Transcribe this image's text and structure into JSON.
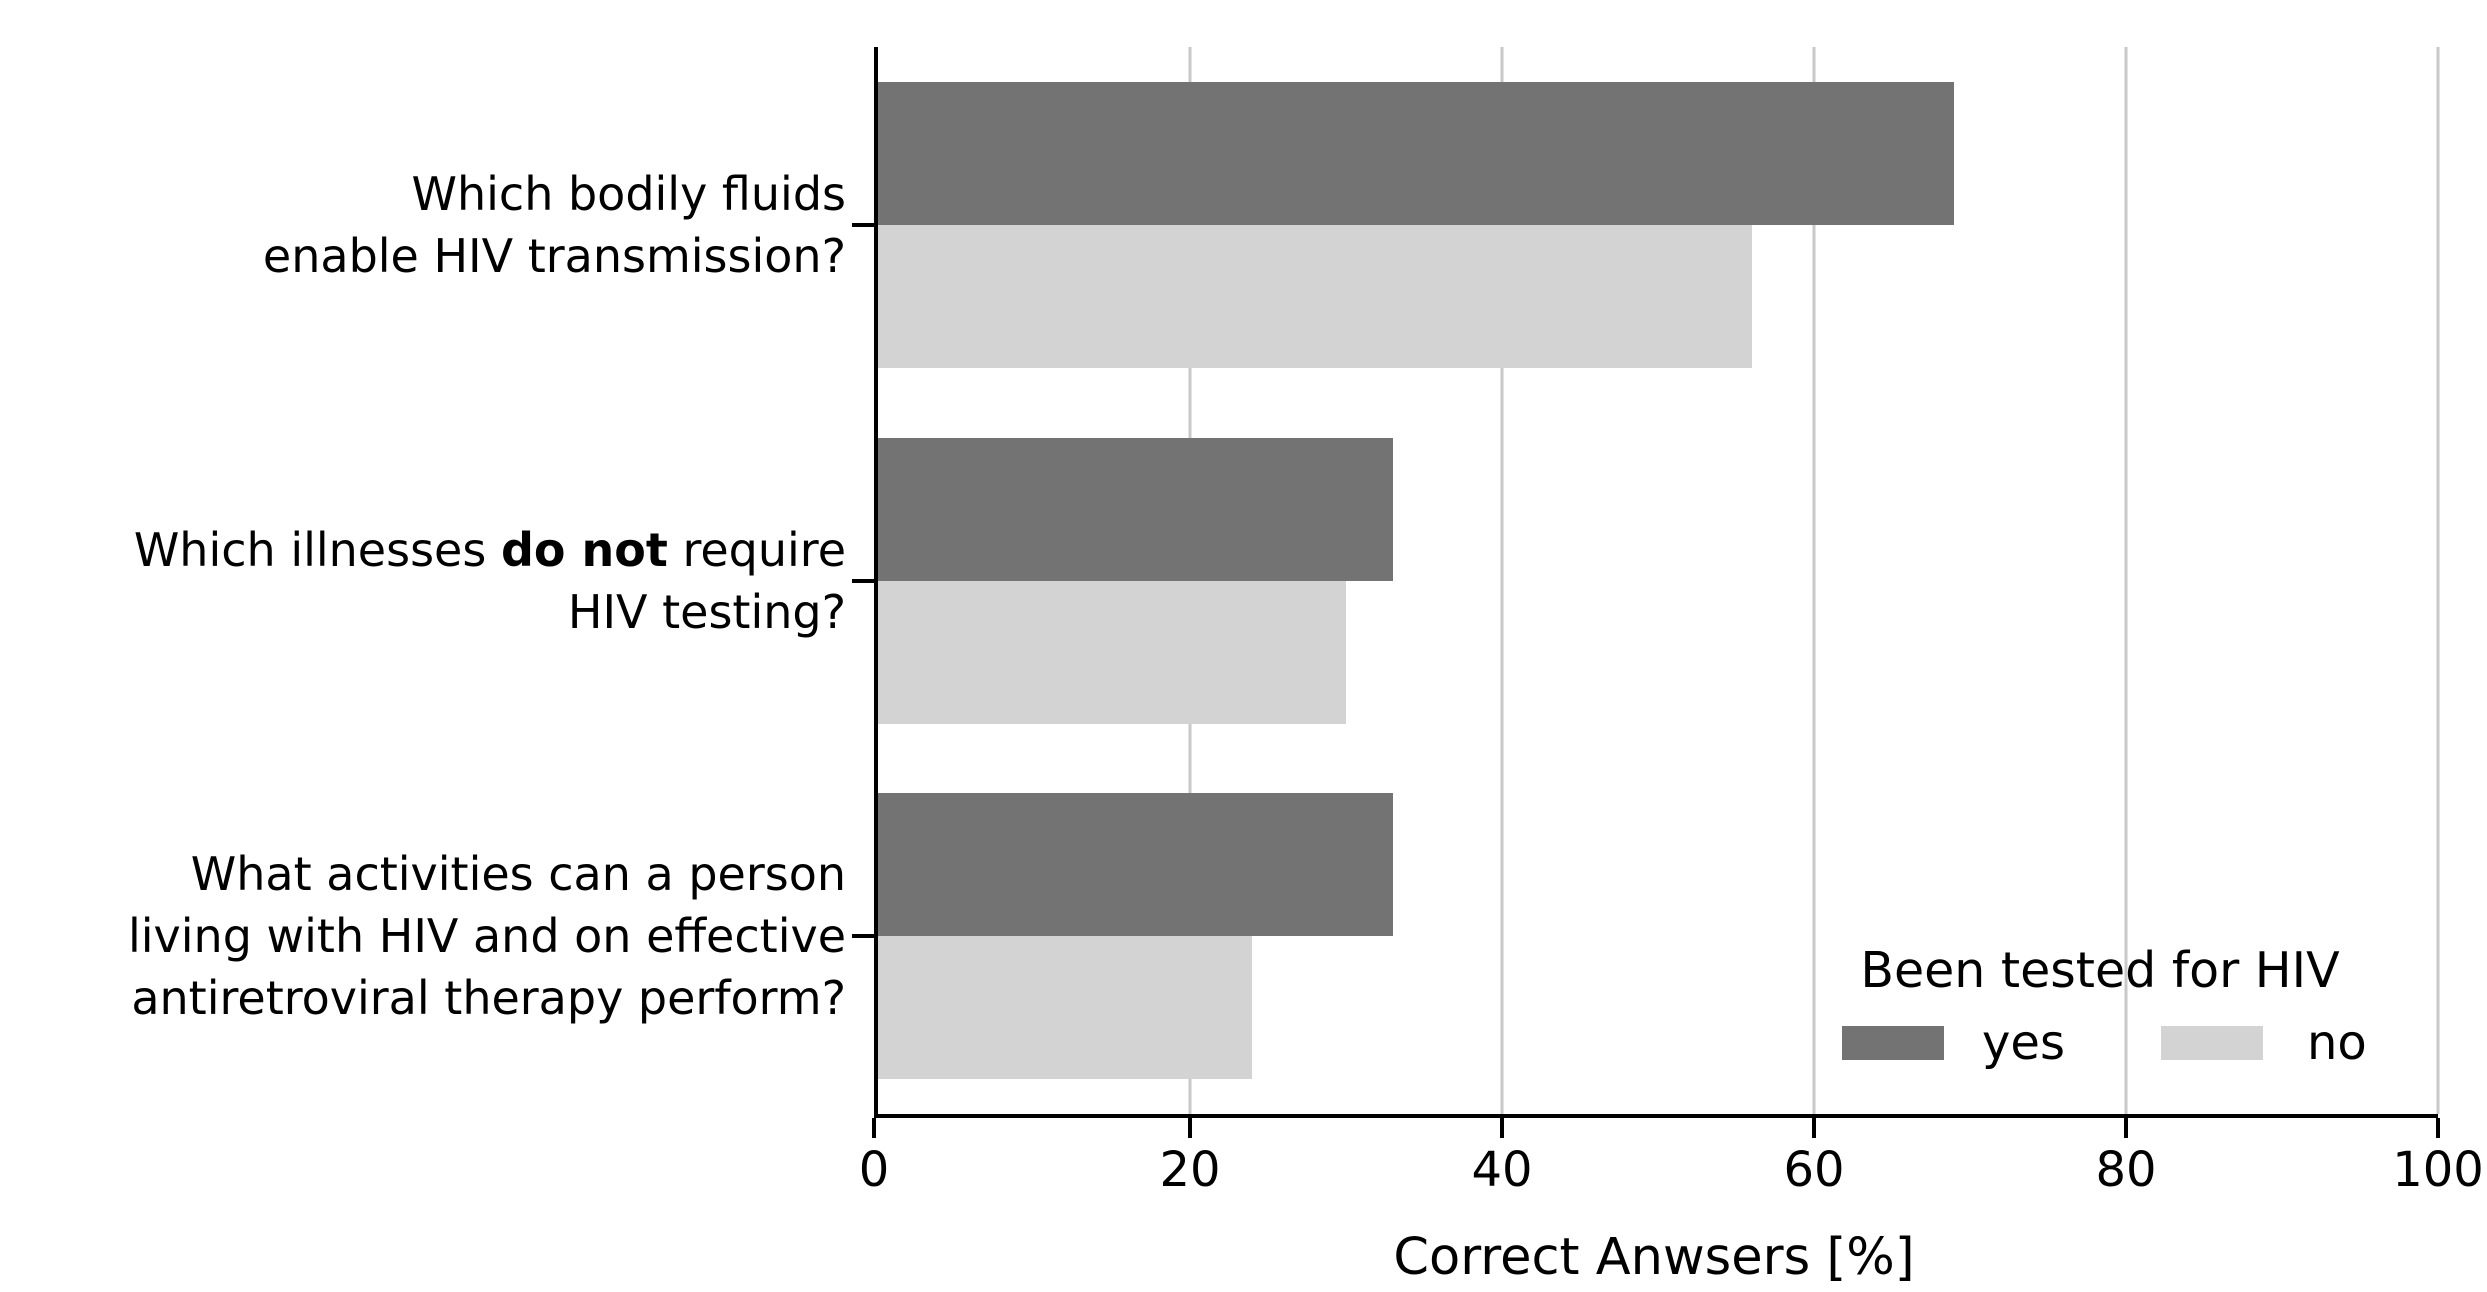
{
  "figure": {
    "background": "#ffffff",
    "spine_color": "#000000",
    "gridline_color": "#c8c8c8"
  },
  "x_axis": {
    "label": "Correct Anwsers [%]",
    "tick_labels": [
      "0",
      "20",
      "40",
      "60",
      "80",
      "100"
    ]
  },
  "legend": {
    "title": "Been tested for HIV",
    "items": [
      {
        "label": "yes",
        "color": "#737373"
      },
      {
        "label": "no",
        "color": "#d3d3d3"
      }
    ]
  },
  "chart_data": {
    "type": "bar",
    "orientation": "horizontal",
    "title": "",
    "categories": [
      "Which bodily fluids\nenable HIV transmission?",
      "Which illnesses do not require\nHIV testing?",
      "What activities can a person\nliving with HIV and on effective\nantiretroviral therapy perform?"
    ],
    "categories_rich": [
      [
        [
          {
            "t": "Which bodily fluids"
          }
        ],
        [
          {
            "t": "enable HIV transmission?"
          }
        ]
      ],
      [
        [
          {
            "t": "Which illnesses "
          },
          {
            "t": "do not",
            "b": true
          },
          {
            "t": " require"
          }
        ],
        [
          {
            "t": "HIV testing?"
          }
        ]
      ],
      [
        [
          {
            "t": "What activities can a person"
          }
        ],
        [
          {
            "t": "living with HIV and on effective"
          }
        ],
        [
          {
            "t": "antiretroviral therapy perform?"
          }
        ]
      ]
    ],
    "series": [
      {
        "name": "yes",
        "color": "#737373",
        "values": [
          69,
          33,
          33
        ]
      },
      {
        "name": "no",
        "color": "#d3d3d3",
        "values": [
          56,
          30,
          24
        ]
      }
    ],
    "xlabel": "Correct Anwsers [%]",
    "ylabel": "",
    "xlim": [
      0,
      100
    ],
    "xticks": [
      0,
      20,
      40,
      60,
      80,
      100
    ],
    "grid": "vertical",
    "legend_title": "Been tested for HIV",
    "legend_position": "lower right"
  }
}
